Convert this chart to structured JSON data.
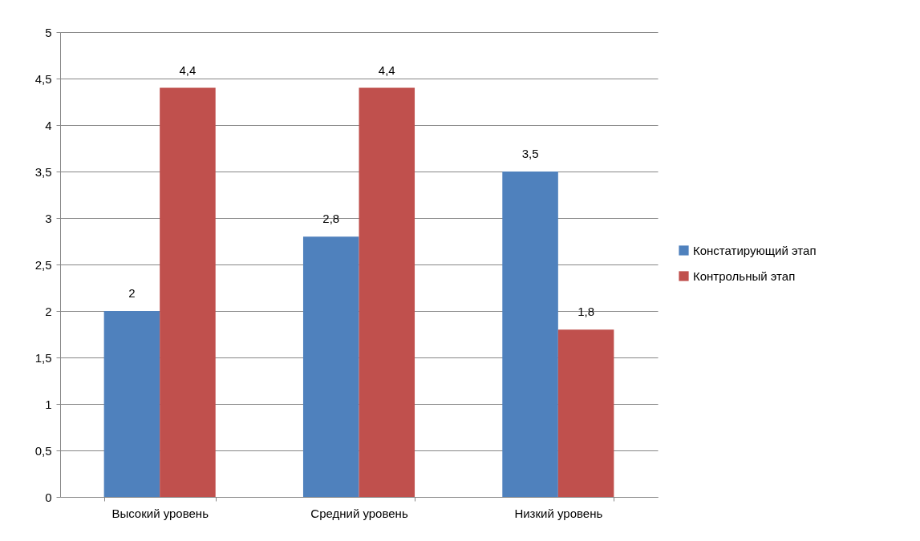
{
  "chart_data": {
    "type": "bar",
    "categories": [
      "Высокий уровень",
      "Средний уровень",
      "Низкий уровень"
    ],
    "series": [
      {
        "name": "Констатирующий этап",
        "color": "#4f81bd",
        "values": [
          2,
          2.8,
          3.5
        ],
        "value_labels": [
          "2",
          "2,8",
          "3,5"
        ]
      },
      {
        "name": "Контрольный этап",
        "color": "#c0504d",
        "values": [
          4.4,
          4.4,
          1.8
        ],
        "value_labels": [
          "4,4",
          "4,4",
          "1,8"
        ]
      }
    ],
    "ylim": [
      0,
      5
    ],
    "yticks": [
      0,
      {
        "value": 0.5,
        "label": "0,5"
      },
      1,
      {
        "value": 1.5,
        "label": "1,5"
      },
      2,
      {
        "value": 2.5,
        "label": "2,5"
      },
      3,
      {
        "value": 3.5,
        "label": "3,5"
      },
      4,
      {
        "value": 4.5,
        "label": "4,5"
      },
      5
    ],
    "grid": "y",
    "legend": "right"
  }
}
